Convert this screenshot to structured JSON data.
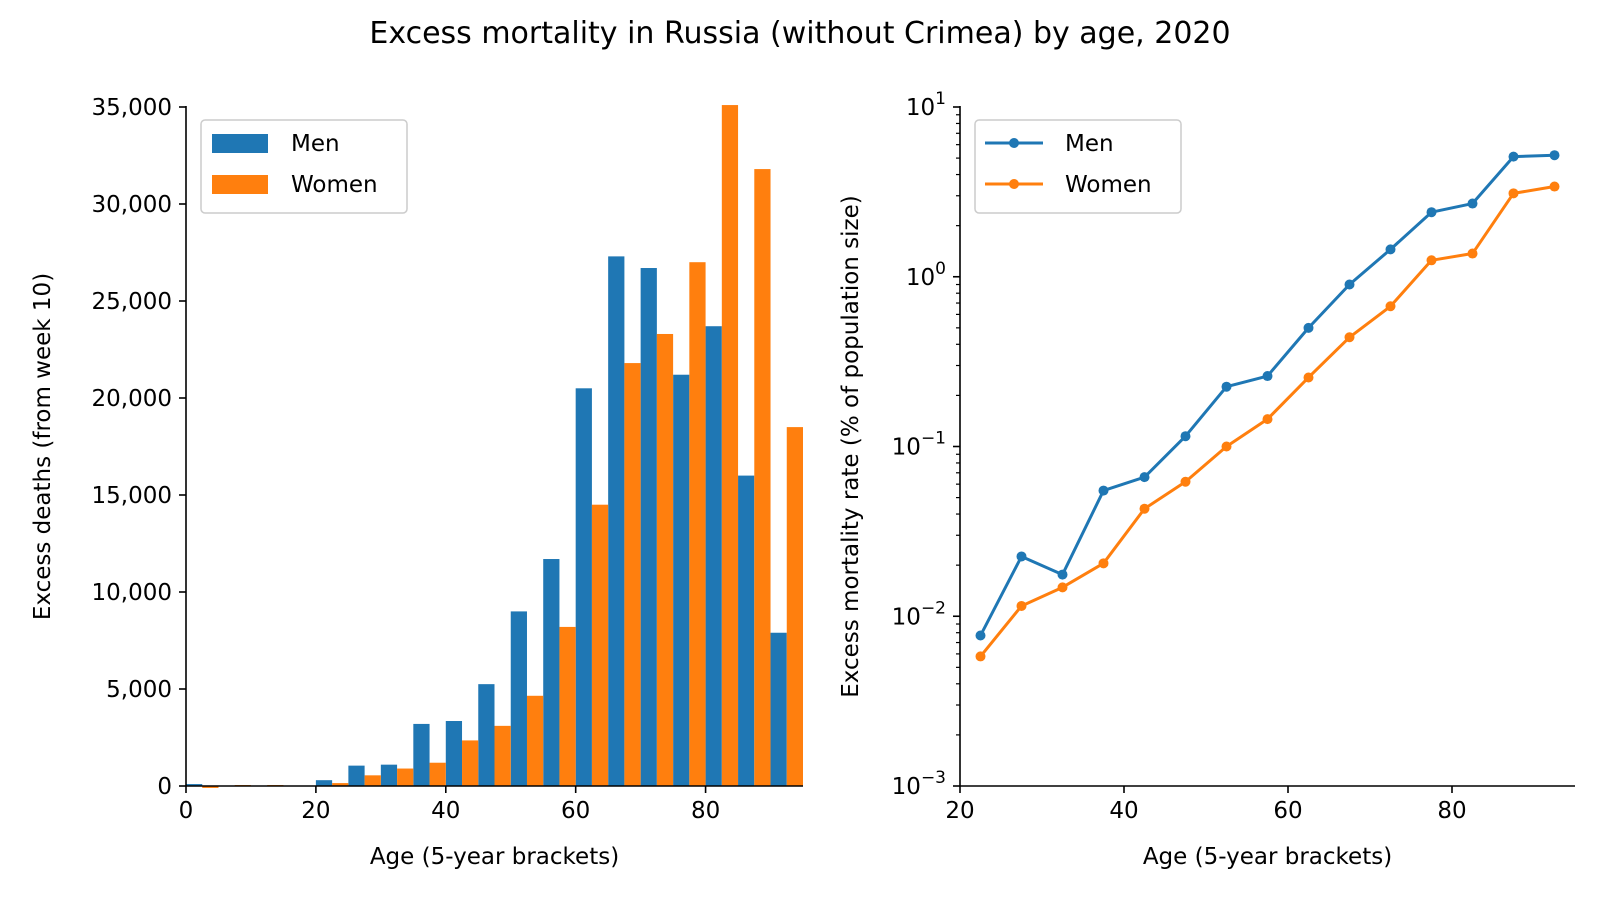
{
  "title": "Excess mortality in Russia (without Crimea) by age, 2020",
  "colors": {
    "men": "#1f77b4",
    "women": "#ff7f0e"
  },
  "chart_data": [
    {
      "type": "bar",
      "xlabel": "Age (5-year brackets)",
      "ylabel": "Excess deaths (from week 10)",
      "xlim": [
        0,
        95
      ],
      "ylim": [
        0,
        35000
      ],
      "xticks": [
        0,
        20,
        40,
        60,
        80
      ],
      "xtick_labels": [
        "0",
        "20",
        "40",
        "60",
        "80"
      ],
      "yticks": [
        0,
        5000,
        10000,
        15000,
        20000,
        25000,
        30000,
        35000
      ],
      "ytick_labels": [
        "0",
        "5,000",
        "10,000",
        "15,000",
        "20,000",
        "25,000",
        "30,000",
        "35,000"
      ],
      "legend": {
        "position": "top-left",
        "entries": [
          "Men",
          "Women"
        ]
      },
      "categories": [
        2.5,
        7.5,
        12.5,
        17.5,
        22.5,
        27.5,
        32.5,
        37.5,
        42.5,
        47.5,
        52.5,
        57.5,
        62.5,
        67.5,
        72.5,
        77.5,
        82.5,
        87.5,
        92.5
      ],
      "series": [
        {
          "name": "Men",
          "values": [
            100,
            0,
            0,
            0,
            300,
            1050,
            1100,
            3200,
            3350,
            5250,
            9000,
            11700,
            20500,
            27300,
            26700,
            21200,
            23700,
            16000,
            7900
          ]
        },
        {
          "name": "Women",
          "values": [
            -100,
            50,
            50,
            0,
            150,
            550,
            900,
            1200,
            2350,
            3100,
            4650,
            8200,
            14500,
            21800,
            23300,
            27000,
            35100,
            31800,
            18500
          ]
        }
      ]
    },
    {
      "type": "line",
      "xlabel": "Age (5-year brackets)",
      "ylabel": "Excess mortality rate (% of population size)",
      "yscale": "log",
      "xlim": [
        20,
        95
      ],
      "ylim": [
        0.001,
        10
      ],
      "xticks": [
        20,
        40,
        60,
        80
      ],
      "xtick_labels": [
        "20",
        "40",
        "60",
        "80"
      ],
      "ytick_bases": [
        "10",
        "10",
        "10",
        "10",
        "10"
      ],
      "ytick_exponents": [
        "−3",
        "−2",
        "−1",
        "0",
        "1"
      ],
      "yticks": [
        0.001,
        0.01,
        0.1,
        1,
        10
      ],
      "legend": {
        "position": "top-left",
        "entries": [
          "Men",
          "Women"
        ]
      },
      "x": [
        22.5,
        27.5,
        32.5,
        37.5,
        42.5,
        47.5,
        52.5,
        57.5,
        62.5,
        67.5,
        72.5,
        77.5,
        82.5,
        87.5,
        92.5
      ],
      "series": [
        {
          "name": "Men",
          "values": [
            0.0077,
            0.0225,
            0.0176,
            0.055,
            0.066,
            0.115,
            0.225,
            0.26,
            0.5,
            0.9,
            1.45,
            2.4,
            2.7,
            5.1,
            5.2
          ]
        },
        {
          "name": "Women",
          "values": [
            0.0058,
            0.0115,
            0.0148,
            0.0205,
            0.043,
            0.062,
            0.1,
            0.145,
            0.255,
            0.44,
            0.67,
            1.25,
            1.37,
            3.1,
            3.4
          ]
        }
      ]
    }
  ]
}
